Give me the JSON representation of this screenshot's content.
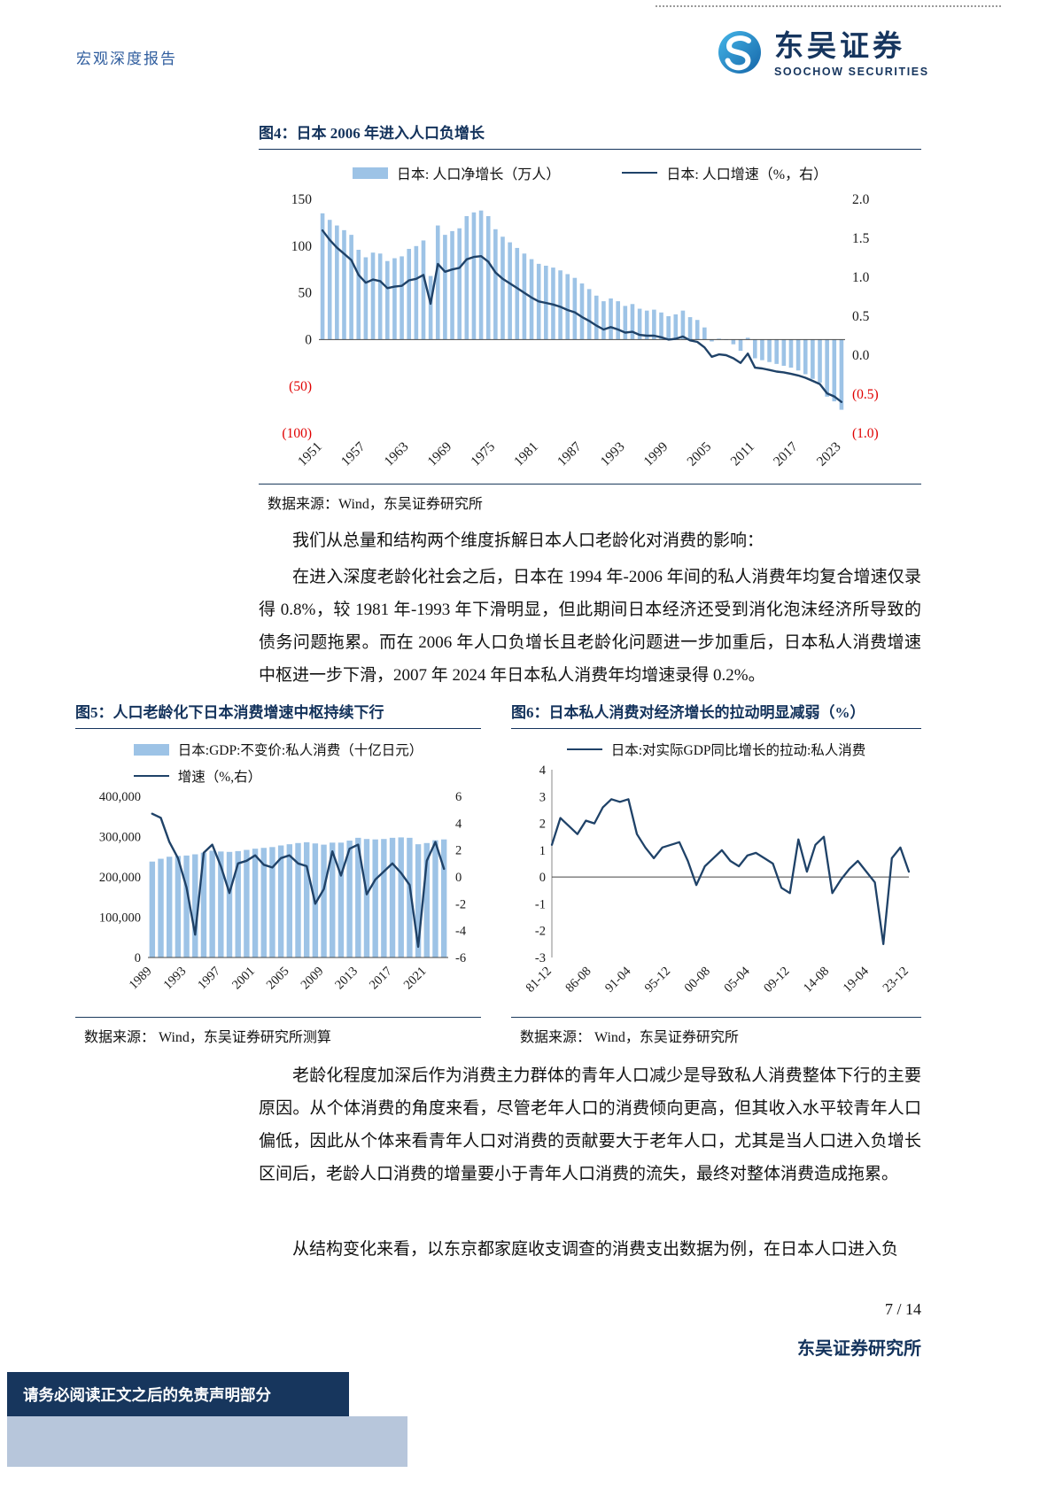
{
  "header": {
    "report_type": "宏观深度报告",
    "brand_cn": "东吴证券",
    "brand_en": "SOOCHOW SECURITIES"
  },
  "figure4": {
    "title": "图4：日本 2006 年进入人口负增长",
    "legend_bar": "日本: 人口净增长（万人）",
    "legend_line": "日本: 人口增速（%，右）",
    "source": "数据来源：Wind，东吴证券研究所"
  },
  "figure5": {
    "title": "图5：人口老龄化下日本消费增速中枢持续下行",
    "legend_bar": "日本:GDP:不变价:私人消费（十亿日元）",
    "legend_line": "增速（%,右）",
    "source": "数据来源： Wind，东吴证券研究所测算"
  },
  "figure6": {
    "title": "图6：日本私人消费对经济增长的拉动明显减弱（%）",
    "legend_line": "日本:对实际GDP同比增长的拉动:私人消费",
    "source": "数据来源： Wind，东吴证券研究所"
  },
  "body": {
    "p1": "我们从总量和结构两个维度拆解日本人口老龄化对消费的影响：",
    "p2": "在进入深度老龄化社会之后，日本在 1994 年-2006 年间的私人消费年均复合增速仅录得 0.8%，较 1981 年-1993 年下滑明显，但此期间日本经济还受到消化泡沫经济所导致的债务问题拖累。而在 2006 年人口负增长且老龄化问题进一步加重后，日本私人消费增速中枢进一步下滑，2007 年 2024 年日本私人消费年均增速录得 0.2%。",
    "p3": "老龄化程度加深后作为消费主力群体的青年人口减少是导致私人消费整体下行的主要原因。从个体消费的角度来看，尽管老年人口的消费倾向更高，但其收入水平较青年人口偏低，因此从个体来看青年人口对消费的贡献要大于老年人口，尤其是当人口进入负增长区间后，老龄人口消费的增量要小于青年人口消费的流失，最终对整体消费造成拖累。",
    "p4": "从结构变化来看，以东京都家庭收支调查的消费支出数据为例，在日本人口进入负"
  },
  "footer": {
    "page": "7 / 14",
    "institute": "东吴证券研究所",
    "disclaimer": "请务必阅读正文之后的免责声明部分"
  },
  "colors": {
    "navy": "#14335c",
    "bar": "#9DC3E6",
    "line": "#1F4268",
    "red": "#E00000",
    "header_blue": "#2f5d9e"
  },
  "chart_data": [
    {
      "id": "fig4",
      "type": "bar+line",
      "title": "日本 2006 年进入人口负增长",
      "x_start": 1951,
      "x_end": 2023,
      "x_ticks": [
        1951,
        1957,
        1963,
        1969,
        1975,
        1981,
        1987,
        1993,
        1999,
        2005,
        2011,
        2017,
        2023
      ],
      "left_axis": {
        "label": "日本: 人口净增长（万人）",
        "range": [
          -100,
          150
        ],
        "ticks": [
          150,
          100,
          50,
          0,
          -50,
          -100
        ],
        "decimals": 0,
        "negative_style": "red-parentheses"
      },
      "right_axis": {
        "label": "日本: 人口增速（%，右）",
        "range": [
          -1,
          2
        ],
        "ticks": [
          2,
          1.5,
          1,
          0.5,
          0,
          -0.5,
          -1
        ],
        "decimals": 1,
        "negative_style": "red-parentheses"
      },
      "series": [
        {
          "name": "日本: 人口净增长（万人）",
          "type": "bar",
          "axis": "left",
          "values": [
            135,
            128,
            122,
            117,
            112,
            96,
            88,
            93,
            92,
            84,
            87,
            89,
            97,
            100,
            106,
            68,
            122,
            112,
            116,
            119,
            132,
            136,
            138,
            132,
            118,
            110,
            104,
            98,
            92,
            86,
            81,
            79,
            77,
            74,
            70,
            66,
            60,
            54,
            47,
            41,
            44,
            41,
            36,
            38,
            33,
            31,
            32,
            29,
            25,
            27,
            31,
            24,
            21,
            13,
            -2,
            1,
            0,
            -5,
            -12,
            2,
            -20,
            -22,
            -24,
            -26,
            -28,
            -30,
            -33,
            -37,
            -42,
            -46,
            -61,
            -66,
            -75
          ]
        },
        {
          "name": "日本: 人口增速（%，右）",
          "type": "line",
          "axis": "right",
          "values": [
            1.6,
            1.48,
            1.38,
            1.3,
            1.22,
            1.03,
            0.93,
            0.97,
            0.95,
            0.86,
            0.88,
            0.89,
            0.96,
            0.98,
            1.03,
            0.66,
            1.17,
            1.07,
            1.1,
            1.12,
            1.23,
            1.26,
            1.27,
            1.2,
            1.06,
            0.98,
            0.92,
            0.86,
            0.8,
            0.74,
            0.69,
            0.67,
            0.65,
            0.62,
            0.58,
            0.55,
            0.49,
            0.44,
            0.38,
            0.33,
            0.36,
            0.33,
            0.29,
            0.3,
            0.26,
            0.25,
            0.25,
            0.23,
            0.2,
            0.21,
            0.24,
            0.19,
            0.17,
            0.1,
            -0.02,
            0.01,
            0.0,
            -0.04,
            -0.1,
            0.02,
            -0.16,
            -0.17,
            -0.19,
            -0.21,
            -0.22,
            -0.24,
            -0.26,
            -0.29,
            -0.33,
            -0.37,
            -0.49,
            -0.53,
            -0.6
          ]
        }
      ]
    },
    {
      "id": "fig5",
      "type": "bar+line",
      "title": "人口老龄化下日本消费增速中枢持续下行",
      "x_start": 1989,
      "x_end": 2023,
      "x_ticks": [
        1989,
        1993,
        1997,
        2001,
        2005,
        2009,
        2013,
        2017,
        2021
      ],
      "left_axis": {
        "label": "日本:GDP:不变价:私人消费（十亿日元）",
        "range": [
          0,
          400000
        ],
        "ticks": [
          400000,
          300000,
          200000,
          100000,
          0
        ],
        "decimals": 0,
        "negative_style": "minus"
      },
      "right_axis": {
        "label": "增速（%,右）",
        "range": [
          -6,
          6
        ],
        "ticks": [
          6,
          4,
          2,
          0,
          -2,
          -4,
          -6
        ],
        "decimals": 0,
        "negative_style": "minus"
      },
      "series": [
        {
          "name": "日本:GDP:不变价:私人消费（十亿日元）",
          "type": "bar",
          "axis": "left",
          "values": [
            238000,
            245000,
            250000,
            252000,
            253000,
            256000,
            260000,
            265000,
            263000,
            262000,
            264000,
            267000,
            270000,
            272000,
            274000,
            278000,
            281000,
            284000,
            286000,
            283000,
            280000,
            285000,
            285000,
            290000,
            297000,
            294000,
            293000,
            294000,
            297000,
            298000,
            297000,
            281000,
            284000,
            291000,
            293000
          ]
        },
        {
          "name": "增速（%,右）",
          "type": "line",
          "axis": "right",
          "values": [
            4.7,
            4.4,
            2.6,
            1.4,
            -0.8,
            -4.3,
            1.8,
            2.4,
            0.8,
            -1.2,
            1.0,
            1.2,
            1.6,
            0.9,
            0.7,
            1.4,
            1.6,
            1.0,
            0.8,
            -2.0,
            -0.9,
            1.9,
            0.1,
            2.1,
            2.4,
            -1.3,
            -0.2,
            0.4,
            1.0,
            0.3,
            -0.6,
            -5.2,
            1.2,
            2.6,
            0.6
          ]
        }
      ]
    },
    {
      "id": "fig6",
      "type": "line",
      "title": "日本私人消费对经济增长的拉动明显减弱（%）",
      "x_tick_labels": [
        "81-12",
        "86-08",
        "91-04",
        "95-12",
        "00-08",
        "05-04",
        "09-12",
        "14-08",
        "19-04",
        "23-12"
      ],
      "y_axis": {
        "range": [
          -3,
          4
        ],
        "ticks": [
          4,
          3,
          2,
          1,
          0,
          -1,
          -2,
          -3
        ]
      },
      "series": [
        {
          "name": "日本:对实际GDP同比增长的拉动:私人消费",
          "values": [
            1.2,
            2.2,
            1.9,
            1.6,
            2.1,
            2.0,
            2.6,
            2.9,
            2.8,
            2.9,
            1.6,
            1.1,
            0.7,
            1.1,
            1.2,
            1.3,
            0.6,
            -0.3,
            0.4,
            0.7,
            1.0,
            0.6,
            0.4,
            0.8,
            0.9,
            0.7,
            0.5,
            -0.4,
            -0.6,
            1.4,
            0.2,
            1.2,
            1.5,
            -0.6,
            -0.1,
            0.3,
            0.6,
            0.2,
            -0.2,
            -2.5,
            0.7,
            1.1,
            0.2
          ]
        }
      ]
    }
  ]
}
